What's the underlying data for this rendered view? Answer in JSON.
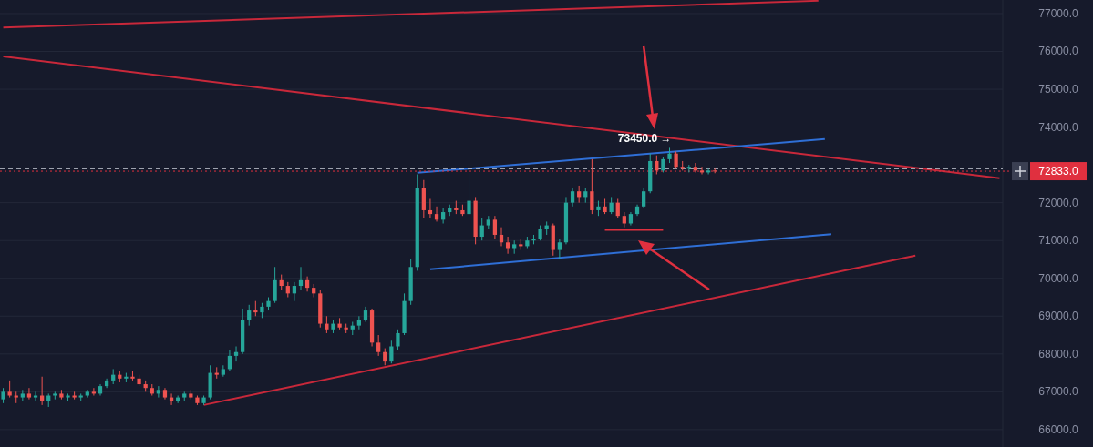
{
  "chart_data": {
    "type": "candlestick",
    "categories": [
      null,
      null,
      null,
      null,
      null,
      null,
      null,
      null,
      null,
      null,
      null,
      null,
      null,
      null,
      null,
      null,
      null,
      null,
      null,
      null,
      null,
      null,
      null,
      null,
      null,
      null,
      null,
      null,
      null,
      null,
      null,
      null,
      null,
      null,
      null,
      null,
      null,
      null,
      null,
      null,
      null,
      null,
      null,
      null,
      null,
      null,
      null,
      null,
      null,
      null,
      null,
      null,
      null,
      null,
      null,
      null,
      null,
      null,
      null,
      null,
      null,
      null,
      null,
      null,
      null,
      null,
      null,
      null,
      null,
      null,
      null,
      null,
      null,
      null,
      null,
      null,
      null,
      null,
      null,
      null,
      null,
      null,
      null,
      null,
      null,
      null,
      null,
      null,
      null,
      null,
      null,
      null,
      null,
      null,
      null,
      null,
      null,
      null,
      null,
      null,
      null,
      null,
      null,
      null,
      null,
      null,
      null,
      null,
      null,
      null,
      null,
      null,
      null,
      null,
      null,
      null,
      null,
      null,
      null,
      null,
      null,
      null,
      null,
      null,
      null,
      null,
      null,
      null,
      null,
      null,
      null,
      null,
      null,
      null,
      null,
      null,
      null,
      null,
      null,
      null,
      null,
      null,
      null,
      null,
      null,
      null,
      null,
      null,
      null,
      null,
      null,
      null,
      null,
      null,
      null
    ],
    "ohlc": [
      [
        66800,
        67100,
        66700,
        67000
      ],
      [
        67000,
        67300,
        66850,
        66900
      ],
      [
        66900,
        67000,
        66700,
        66850
      ],
      [
        66850,
        67050,
        66750,
        66950
      ],
      [
        66950,
        67100,
        66800,
        66850
      ],
      [
        66850,
        67000,
        66750,
        66900
      ],
      [
        66900,
        67400,
        66650,
        66750
      ],
      [
        66750,
        66950,
        66600,
        66900
      ],
      [
        66900,
        67000,
        66800,
        66950
      ],
      [
        66950,
        67050,
        66800,
        66850
      ],
      [
        66850,
        66950,
        66750,
        66900
      ],
      [
        66900,
        67000,
        66800,
        66850
      ],
      [
        66850,
        66950,
        66750,
        66900
      ],
      [
        66900,
        67050,
        66850,
        67000
      ],
      [
        67000,
        67100,
        66900,
        66950
      ],
      [
        66950,
        67200,
        66900,
        67150
      ],
      [
        67150,
        67350,
        67100,
        67300
      ],
      [
        67300,
        67600,
        67200,
        67450
      ],
      [
        67450,
        67550,
        67250,
        67350
      ],
      [
        67350,
        67500,
        67250,
        67400
      ],
      [
        67400,
        67550,
        67300,
        67350
      ],
      [
        67350,
        67450,
        67150,
        67200
      ],
      [
        67200,
        67300,
        67000,
        67100
      ],
      [
        67100,
        67200,
        66900,
        66950
      ],
      [
        66950,
        67150,
        66850,
        67050
      ],
      [
        67050,
        67100,
        66800,
        66850
      ],
      [
        66850,
        66950,
        66650,
        66750
      ],
      [
        66750,
        66900,
        66700,
        66850
      ],
      [
        66850,
        67000,
        66750,
        66950
      ],
      [
        66950,
        67050,
        66800,
        66850
      ],
      [
        66850,
        66900,
        66650,
        66700
      ],
      [
        66700,
        66900,
        66650,
        66850
      ],
      [
        66850,
        67700,
        66800,
        67500
      ],
      [
        67500,
        67650,
        67350,
        67450
      ],
      [
        67450,
        67700,
        67400,
        67600
      ],
      [
        67600,
        68100,
        67550,
        67950
      ],
      [
        67950,
        68200,
        67800,
        68050
      ],
      [
        68050,
        69200,
        68000,
        68900
      ],
      [
        68900,
        69300,
        68750,
        69150
      ],
      [
        69150,
        69400,
        69000,
        69100
      ],
      [
        69100,
        69350,
        68950,
        69250
      ],
      [
        69250,
        69500,
        69150,
        69400
      ],
      [
        69400,
        70300,
        69350,
        69950
      ],
      [
        69950,
        70100,
        69700,
        69800
      ],
      [
        69800,
        69900,
        69500,
        69600
      ],
      [
        69600,
        69900,
        69400,
        69800
      ],
      [
        69800,
        70300,
        69700,
        69950
      ],
      [
        69950,
        70050,
        69650,
        69750
      ],
      [
        69750,
        69850,
        69500,
        69600
      ],
      [
        69600,
        69700,
        68700,
        68800
      ],
      [
        68800,
        69000,
        68550,
        68650
      ],
      [
        68650,
        68900,
        68550,
        68800
      ],
      [
        68800,
        68950,
        68650,
        68700
      ],
      [
        68700,
        68800,
        68550,
        68650
      ],
      [
        68650,
        68850,
        68500,
        68750
      ],
      [
        68750,
        69000,
        68650,
        68900
      ],
      [
        68900,
        69250,
        68850,
        69150
      ],
      [
        69150,
        69200,
        68200,
        68300
      ],
      [
        68300,
        68500,
        67950,
        68050
      ],
      [
        68050,
        68150,
        67700,
        67800
      ],
      [
        67800,
        68350,
        67750,
        68200
      ],
      [
        68200,
        68650,
        68100,
        68550
      ],
      [
        68550,
        69600,
        68500,
        69400
      ],
      [
        69400,
        70500,
        69300,
        70300
      ],
      [
        70300,
        72750,
        70200,
        72400
      ],
      [
        72400,
        72600,
        71600,
        71800
      ],
      [
        71800,
        72100,
        71600,
        71700
      ],
      [
        71700,
        71900,
        71500,
        71550
      ],
      [
        71550,
        71850,
        71450,
        71750
      ],
      [
        71750,
        71950,
        71650,
        71850
      ],
      [
        71850,
        72050,
        71700,
        71800
      ],
      [
        71800,
        71950,
        71650,
        71700
      ],
      [
        71700,
        72800,
        71650,
        72050
      ],
      [
        72050,
        72150,
        70900,
        71100
      ],
      [
        71100,
        71600,
        71000,
        71400
      ],
      [
        71400,
        71650,
        71300,
        71550
      ],
      [
        71550,
        71650,
        71050,
        71150
      ],
      [
        71150,
        71350,
        70850,
        70950
      ],
      [
        70950,
        71100,
        70650,
        70800
      ],
      [
        70800,
        71000,
        70650,
        70900
      ],
      [
        70900,
        71050,
        70750,
        70850
      ],
      [
        70850,
        71100,
        70800,
        71000
      ],
      [
        71000,
        71150,
        70900,
        71050
      ],
      [
        71050,
        71400,
        71000,
        71300
      ],
      [
        71300,
        71500,
        71150,
        71400
      ],
      [
        71400,
        71450,
        70600,
        70750
      ],
      [
        70750,
        71050,
        70500,
        70950
      ],
      [
        70950,
        72150,
        70900,
        72000
      ],
      [
        72000,
        72400,
        71900,
        72300
      ],
      [
        72300,
        72450,
        72000,
        72150
      ],
      [
        72150,
        72400,
        72000,
        72300
      ],
      [
        72300,
        73150,
        71700,
        71800
      ],
      [
        71800,
        72050,
        71650,
        71900
      ],
      [
        71900,
        72100,
        71700,
        71750
      ],
      [
        71750,
        72150,
        71700,
        72000
      ],
      [
        72000,
        72100,
        71600,
        71650
      ],
      [
        71650,
        71750,
        71350,
        71450
      ],
      [
        71450,
        71750,
        71400,
        71700
      ],
      [
        71700,
        71950,
        71650,
        71900
      ],
      [
        71900,
        72400,
        71850,
        72300
      ],
      [
        72300,
        73300,
        72250,
        73100
      ],
      [
        73100,
        73250,
        72750,
        72850
      ],
      [
        72850,
        73200,
        72800,
        73150
      ],
      [
        73150,
        73450,
        73050,
        73300
      ],
      [
        73300,
        73350,
        72900,
        72950
      ],
      [
        72950,
        73100,
        72850,
        72900
      ],
      [
        72900,
        73000,
        72800,
        72950
      ],
      [
        72950,
        73050,
        72800,
        72850
      ],
      [
        72850,
        72950,
        72750,
        72800
      ],
      [
        72800,
        72900,
        72750,
        72850
      ],
      [
        72850,
        72900,
        72780,
        72833
      ],
      null,
      null,
      null,
      null,
      null,
      null,
      null,
      null,
      null,
      null,
      null,
      null,
      null,
      null,
      null,
      null,
      null,
      null,
      null,
      null,
      null,
      null,
      null,
      null,
      null,
      null,
      null,
      null,
      null,
      null,
      null,
      null,
      null,
      null,
      null,
      null,
      null,
      null,
      null,
      null,
      null,
      null,
      null,
      null
    ],
    "series": [
      {
        "type": "line",
        "color": "#c8283a",
        "values": [
          76630,
          null,
          null,
          null,
          null,
          null,
          null,
          null,
          null,
          null,
          null,
          null,
          null,
          null,
          null,
          null,
          null,
          null,
          null,
          null,
          null,
          null,
          null,
          null,
          null,
          null,
          null,
          null,
          null,
          null,
          null,
          null,
          null,
          null,
          null,
          null,
          null,
          null,
          null,
          null,
          null,
          null,
          null,
          null,
          null,
          null,
          null,
          null,
          null,
          null,
          null,
          null,
          null,
          null,
          null,
          null,
          null,
          null,
          null,
          null,
          null,
          null,
          null,
          null,
          null,
          null,
          null,
          null,
          null,
          null,
          null,
          null,
          null,
          null,
          null,
          null,
          null,
          null,
          null,
          null,
          null,
          null,
          null,
          null,
          null,
          null,
          null,
          null,
          null,
          null,
          null,
          null,
          null,
          null,
          null,
          null,
          null,
          null,
          null,
          null,
          null,
          null,
          null,
          null,
          null,
          null,
          null,
          null,
          null,
          null,
          null,
          null,
          null,
          null,
          null,
          null,
          null,
          null,
          null,
          null,
          null,
          null,
          null,
          null,
          null,
          null,
          77340,
          null,
          null,
          null,
          null,
          null,
          null,
          null,
          null,
          null,
          null,
          null,
          null,
          null,
          null,
          null,
          null,
          null,
          null,
          null,
          null,
          null,
          null,
          null,
          null,
          null,
          null,
          null,
          null
        ]
      },
      {
        "type": "line",
        "color": "#c8283a",
        "values": [
          75870,
          null,
          null,
          null,
          null,
          null,
          null,
          null,
          null,
          null,
          null,
          null,
          null,
          null,
          null,
          null,
          null,
          null,
          null,
          null,
          null,
          null,
          null,
          null,
          null,
          null,
          null,
          null,
          null,
          null,
          null,
          null,
          null,
          null,
          null,
          null,
          null,
          null,
          null,
          null,
          null,
          null,
          null,
          null,
          null,
          null,
          null,
          null,
          null,
          null,
          null,
          null,
          null,
          null,
          null,
          null,
          null,
          null,
          null,
          null,
          null,
          null,
          null,
          null,
          null,
          null,
          null,
          null,
          null,
          null,
          null,
          null,
          null,
          null,
          null,
          null,
          null,
          null,
          null,
          null,
          null,
          null,
          null,
          null,
          null,
          null,
          null,
          null,
          null,
          null,
          null,
          null,
          null,
          null,
          null,
          null,
          null,
          null,
          null,
          null,
          null,
          null,
          null,
          null,
          null,
          null,
          null,
          null,
          null,
          null,
          null,
          null,
          null,
          null,
          null,
          null,
          null,
          null,
          null,
          null,
          null,
          null,
          null,
          null,
          null,
          null,
          null,
          null,
          null,
          null,
          null,
          null,
          null,
          null,
          null,
          null,
          null,
          null,
          null,
          null,
          null,
          null,
          null,
          null,
          null,
          null,
          null,
          null,
          null,
          null,
          null,
          null,
          null,
          null,
          72650
        ]
      },
      {
        "type": "line",
        "color": "#c8283a",
        "values": [
          null,
          null,
          null,
          null,
          null,
          null,
          null,
          null,
          null,
          null,
          null,
          null,
          null,
          null,
          null,
          null,
          null,
          null,
          null,
          null,
          null,
          null,
          null,
          null,
          null,
          null,
          null,
          null,
          null,
          null,
          null,
          66650,
          null,
          null,
          null,
          null,
          null,
          null,
          null,
          null,
          null,
          null,
          null,
          null,
          null,
          null,
          null,
          null,
          null,
          null,
          null,
          null,
          null,
          null,
          null,
          null,
          null,
          null,
          null,
          null,
          null,
          null,
          null,
          null,
          null,
          null,
          null,
          null,
          null,
          null,
          null,
          null,
          null,
          null,
          null,
          null,
          null,
          null,
          null,
          null,
          null,
          null,
          null,
          null,
          null,
          null,
          null,
          null,
          null,
          null,
          null,
          null,
          null,
          null,
          null,
          null,
          null,
          null,
          null,
          null,
          null,
          null,
          null,
          null,
          null,
          null,
          null,
          null,
          null,
          null,
          null,
          null,
          null,
          null,
          null,
          null,
          null,
          null,
          null,
          null,
          null,
          null,
          null,
          null,
          null,
          null,
          null,
          null,
          null,
          null,
          null,
          null,
          null,
          null,
          null,
          null,
          null,
          null,
          null,
          null,
          null,
          70600,
          null,
          null,
          null,
          null,
          null,
          null,
          null,
          null,
          null,
          null,
          null,
          null,
          null
        ]
      },
      {
        "type": "line",
        "color": "#2f6fd6",
        "values": [
          null,
          null,
          null,
          null,
          null,
          null,
          null,
          null,
          null,
          null,
          null,
          null,
          null,
          null,
          null,
          null,
          null,
          null,
          null,
          null,
          null,
          null,
          null,
          null,
          null,
          null,
          null,
          null,
          null,
          null,
          null,
          null,
          null,
          null,
          null,
          null,
          null,
          null,
          null,
          null,
          null,
          null,
          null,
          null,
          null,
          null,
          null,
          null,
          null,
          null,
          null,
          null,
          null,
          null,
          null,
          null,
          null,
          null,
          null,
          null,
          null,
          null,
          null,
          null,
          72790,
          null,
          null,
          null,
          null,
          null,
          null,
          null,
          null,
          null,
          null,
          null,
          null,
          null,
          null,
          null,
          null,
          null,
          null,
          null,
          null,
          null,
          null,
          null,
          null,
          null,
          null,
          null,
          null,
          null,
          null,
          null,
          null,
          null,
          null,
          null,
          null,
          null,
          null,
          null,
          null,
          null,
          null,
          null,
          null,
          null,
          null,
          null,
          null,
          null,
          null,
          null,
          null,
          null,
          null,
          null,
          null,
          null,
          null,
          null,
          null,
          null,
          null,
          73680,
          null,
          null,
          null,
          null,
          null,
          null,
          null,
          null,
          null,
          null,
          null,
          null,
          null,
          null,
          null,
          null,
          null,
          null,
          null,
          null,
          null,
          null,
          null,
          null,
          null,
          null,
          null
        ]
      },
      {
        "type": "line",
        "color": "#2f6fd6",
        "values": [
          null,
          null,
          null,
          null,
          null,
          null,
          null,
          null,
          null,
          null,
          null,
          null,
          null,
          null,
          null,
          null,
          null,
          null,
          null,
          null,
          null,
          null,
          null,
          null,
          null,
          null,
          null,
          null,
          null,
          null,
          null,
          null,
          null,
          null,
          null,
          null,
          null,
          null,
          null,
          null,
          null,
          null,
          null,
          null,
          null,
          null,
          null,
          null,
          null,
          null,
          null,
          null,
          null,
          null,
          null,
          null,
          null,
          null,
          null,
          null,
          null,
          null,
          null,
          null,
          null,
          null,
          70240,
          null,
          null,
          null,
          null,
          null,
          null,
          null,
          null,
          null,
          null,
          null,
          null,
          null,
          null,
          null,
          null,
          null,
          null,
          null,
          null,
          null,
          null,
          null,
          null,
          null,
          null,
          null,
          null,
          null,
          null,
          null,
          null,
          null,
          null,
          null,
          null,
          null,
          null,
          null,
          null,
          null,
          null,
          null,
          null,
          null,
          null,
          null,
          null,
          null,
          null,
          null,
          null,
          null,
          null,
          null,
          null,
          null,
          null,
          null,
          null,
          null,
          71170,
          null,
          null,
          null,
          null,
          null,
          null,
          null,
          null,
          null,
          null,
          null,
          null,
          null,
          null,
          null,
          null,
          null,
          null,
          null,
          null,
          null,
          null,
          null,
          null,
          null,
          null
        ]
      },
      {
        "type": "line",
        "color": "#e0303f",
        "values": [
          null,
          null,
          null,
          null,
          null,
          null,
          null,
          null,
          null,
          null,
          null,
          null,
          null,
          null,
          null,
          null,
          null,
          null,
          null,
          null,
          null,
          null,
          null,
          null,
          null,
          null,
          null,
          null,
          null,
          null,
          null,
          null,
          null,
          null,
          null,
          null,
          null,
          null,
          null,
          null,
          null,
          null,
          null,
          null,
          null,
          null,
          null,
          null,
          null,
          null,
          null,
          null,
          null,
          null,
          null,
          null,
          null,
          null,
          null,
          null,
          null,
          null,
          null,
          null,
          null,
          null,
          null,
          null,
          null,
          null,
          null,
          null,
          null,
          null,
          null,
          null,
          null,
          null,
          null,
          null,
          null,
          null,
          null,
          null,
          null,
          null,
          null,
          null,
          null,
          null,
          null,
          null,
          null,
          71280,
          null,
          null,
          null,
          null,
          null,
          null,
          null,
          null,
          71280,
          null,
          null,
          null,
          null,
          null,
          null,
          null,
          null,
          null,
          null,
          null,
          null,
          null,
          null,
          null,
          null,
          null,
          null,
          null,
          null,
          null,
          null,
          null,
          null,
          null,
          null,
          null,
          null,
          null,
          null,
          null,
          null,
          null,
          null,
          null,
          null,
          null,
          null,
          null,
          null,
          null,
          null,
          null,
          null,
          null,
          null,
          null,
          null,
          null,
          null,
          null,
          null
        ]
      }
    ],
    "ylim": [
      65540,
      77360
    ],
    "yticks": [
      {
        "value": 66000,
        "label": "66000.0"
      },
      {
        "value": 67000,
        "label": "67000.0"
      },
      {
        "value": 68000,
        "label": "68000.0"
      },
      {
        "value": 69000,
        "label": "69000.0"
      },
      {
        "value": 70000,
        "label": "70000.0"
      },
      {
        "value": 71000,
        "label": "71000.0"
      },
      {
        "value": 72000,
        "label": "72000.0"
      },
      {
        "value": 74000,
        "label": "74000.0"
      },
      {
        "value": 75000,
        "label": "75000.0"
      },
      {
        "value": 76000,
        "label": "76000.0"
      },
      {
        "value": 77000,
        "label": "77000.0"
      }
    ],
    "grid": "y",
    "ref_lines": [
      {
        "axis": "y",
        "value": 72900,
        "color": "#c8ccd6",
        "line_style": "dashed"
      },
      {
        "axis": "y",
        "value": 72833,
        "label": "72833.0",
        "color": "#e0303f",
        "line_style": "dotted"
      }
    ],
    "annotations": [
      "73450.0 →"
    ]
  }
}
